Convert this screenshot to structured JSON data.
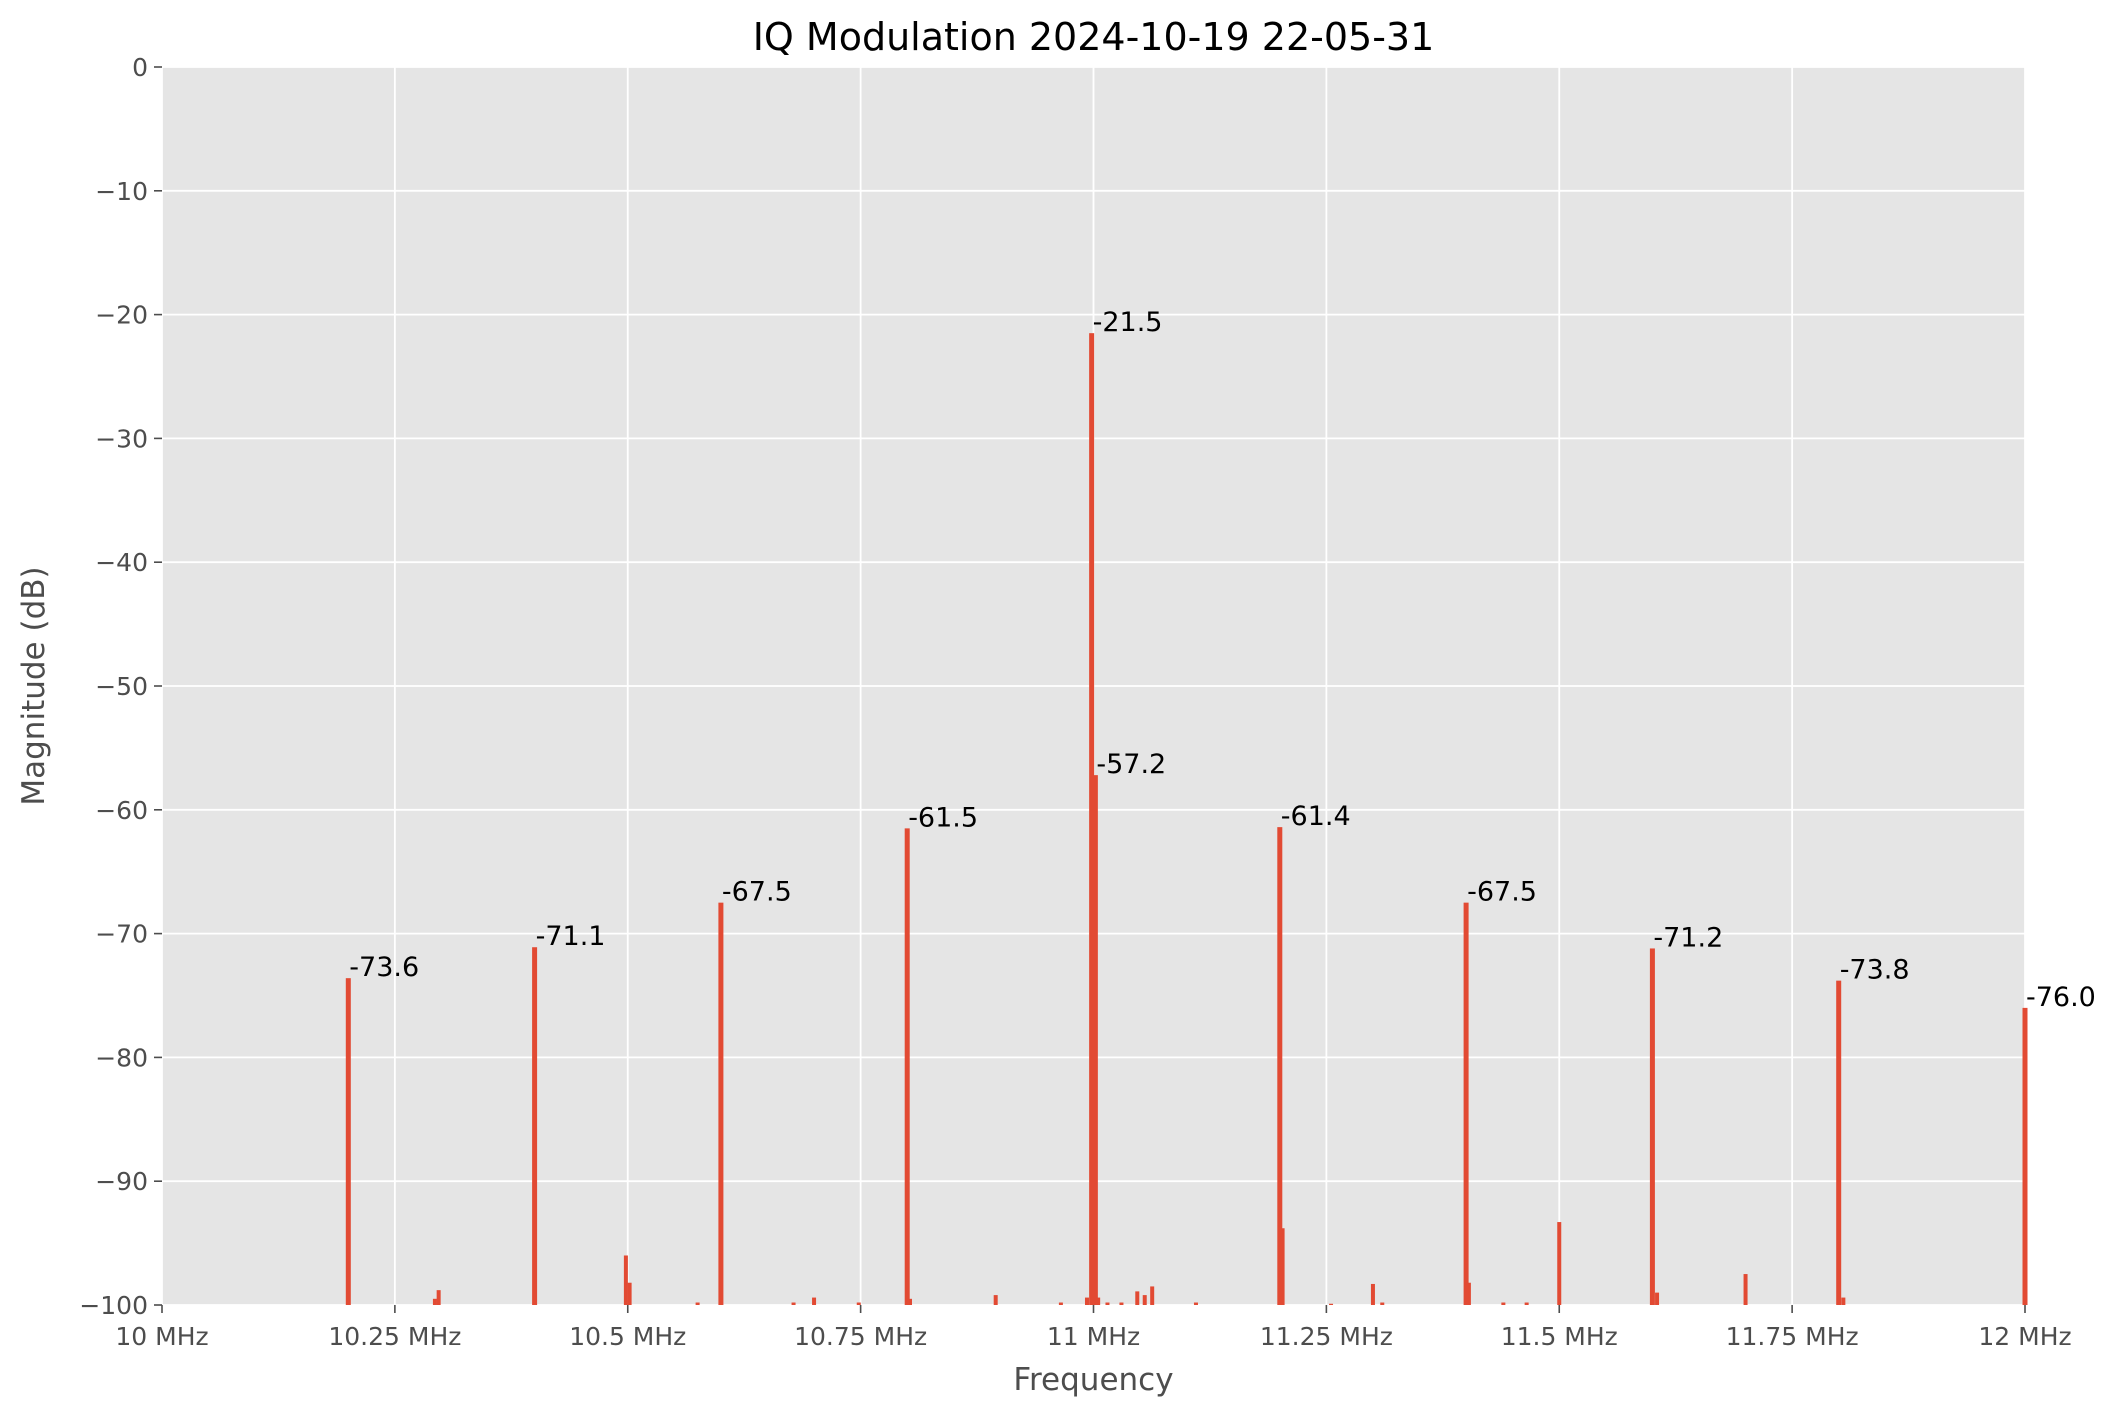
{
  "chart_data": {
    "type": "bar",
    "title": "IQ Modulation 2024-10-19 22-05-31",
    "xlabel": "Frequency",
    "ylabel": "Magnitude (dB)",
    "xlim": [
      10,
      12
    ],
    "ylim": [
      -100,
      0
    ],
    "grid": true,
    "x_unit": "MHz",
    "x_ticks": [
      {
        "value": 10,
        "label": "10 MHz"
      },
      {
        "value": 10.25,
        "label": "10.25 MHz"
      },
      {
        "value": 10.5,
        "label": "10.5 MHz"
      },
      {
        "value": 10.75,
        "label": "10.75 MHz"
      },
      {
        "value": 11,
        "label": "11 MHz"
      },
      {
        "value": 11.25,
        "label": "11.25 MHz"
      },
      {
        "value": 11.5,
        "label": "11.5 MHz"
      },
      {
        "value": 11.75,
        "label": "11.75 MHz"
      },
      {
        "value": 12,
        "label": "12 MHz"
      }
    ],
    "y_ticks": [
      {
        "value": 0,
        "label": "0"
      },
      {
        "value": -10,
        "label": "−10"
      },
      {
        "value": -20,
        "label": "−20"
      },
      {
        "value": -30,
        "label": "−30"
      },
      {
        "value": -40,
        "label": "−40"
      },
      {
        "value": -50,
        "label": "−50"
      },
      {
        "value": -60,
        "label": "−60"
      },
      {
        "value": -70,
        "label": "−70"
      },
      {
        "value": -80,
        "label": "−80"
      },
      {
        "value": -90,
        "label": "−90"
      },
      {
        "value": -100,
        "label": "−100"
      }
    ],
    "bar_color": "#E24A33",
    "plot_background": "#E5E5E5",
    "peaks": [
      {
        "freq_mhz": 10.2,
        "db": -73.6,
        "label": "-73.6"
      },
      {
        "freq_mhz": 10.4,
        "db": -71.1,
        "label": "-71.1"
      },
      {
        "freq_mhz": 10.6,
        "db": -67.5,
        "label": "-67.5"
      },
      {
        "freq_mhz": 10.8,
        "db": -61.5,
        "label": "-61.5"
      },
      {
        "freq_mhz": 10.998,
        "db": -21.5,
        "label": "-21.5"
      },
      {
        "freq_mhz": 11.002,
        "db": -57.2,
        "label": "-57.2"
      },
      {
        "freq_mhz": 11.2,
        "db": -61.4,
        "label": "-61.4"
      },
      {
        "freq_mhz": 11.4,
        "db": -67.5,
        "label": "-67.5"
      },
      {
        "freq_mhz": 11.6,
        "db": -71.2,
        "label": "-71.2"
      },
      {
        "freq_mhz": 11.8,
        "db": -73.8,
        "label": "-73.8"
      },
      {
        "freq_mhz": 12.0,
        "db": -76.0,
        "label": "-76.0"
      }
    ],
    "minor_components": [
      {
        "freq_mhz": 10.293,
        "db": -99.5
      },
      {
        "freq_mhz": 10.297,
        "db": -98.8
      },
      {
        "freq_mhz": 10.498,
        "db": -96.0
      },
      {
        "freq_mhz": 10.502,
        "db": -98.2
      },
      {
        "freq_mhz": 10.575,
        "db": -99.8
      },
      {
        "freq_mhz": 10.678,
        "db": -99.8
      },
      {
        "freq_mhz": 10.7,
        "db": -99.4
      },
      {
        "freq_mhz": 10.748,
        "db": -99.8
      },
      {
        "freq_mhz": 10.803,
        "db": -99.5
      },
      {
        "freq_mhz": 10.895,
        "db": -99.2
      },
      {
        "freq_mhz": 10.965,
        "db": -99.8
      },
      {
        "freq_mhz": 10.993,
        "db": -99.4
      },
      {
        "freq_mhz": 11.005,
        "db": -99.4
      },
      {
        "freq_mhz": 11.015,
        "db": -99.8
      },
      {
        "freq_mhz": 11.03,
        "db": -99.8
      },
      {
        "freq_mhz": 11.047,
        "db": -98.9
      },
      {
        "freq_mhz": 11.055,
        "db": -99.2
      },
      {
        "freq_mhz": 11.063,
        "db": -98.5
      },
      {
        "freq_mhz": 11.11,
        "db": -99.8
      },
      {
        "freq_mhz": 11.203,
        "db": -93.8
      },
      {
        "freq_mhz": 11.255,
        "db": -99.9
      },
      {
        "freq_mhz": 11.3,
        "db": -98.3
      },
      {
        "freq_mhz": 11.31,
        "db": -99.8
      },
      {
        "freq_mhz": 11.403,
        "db": -98.2
      },
      {
        "freq_mhz": 11.44,
        "db": -99.8
      },
      {
        "freq_mhz": 11.465,
        "db": -99.8
      },
      {
        "freq_mhz": 11.5,
        "db": -93.3
      },
      {
        "freq_mhz": 11.605,
        "db": -99.0
      },
      {
        "freq_mhz": 11.7,
        "db": -97.5
      },
      {
        "freq_mhz": 11.805,
        "db": -99.4
      }
    ]
  }
}
